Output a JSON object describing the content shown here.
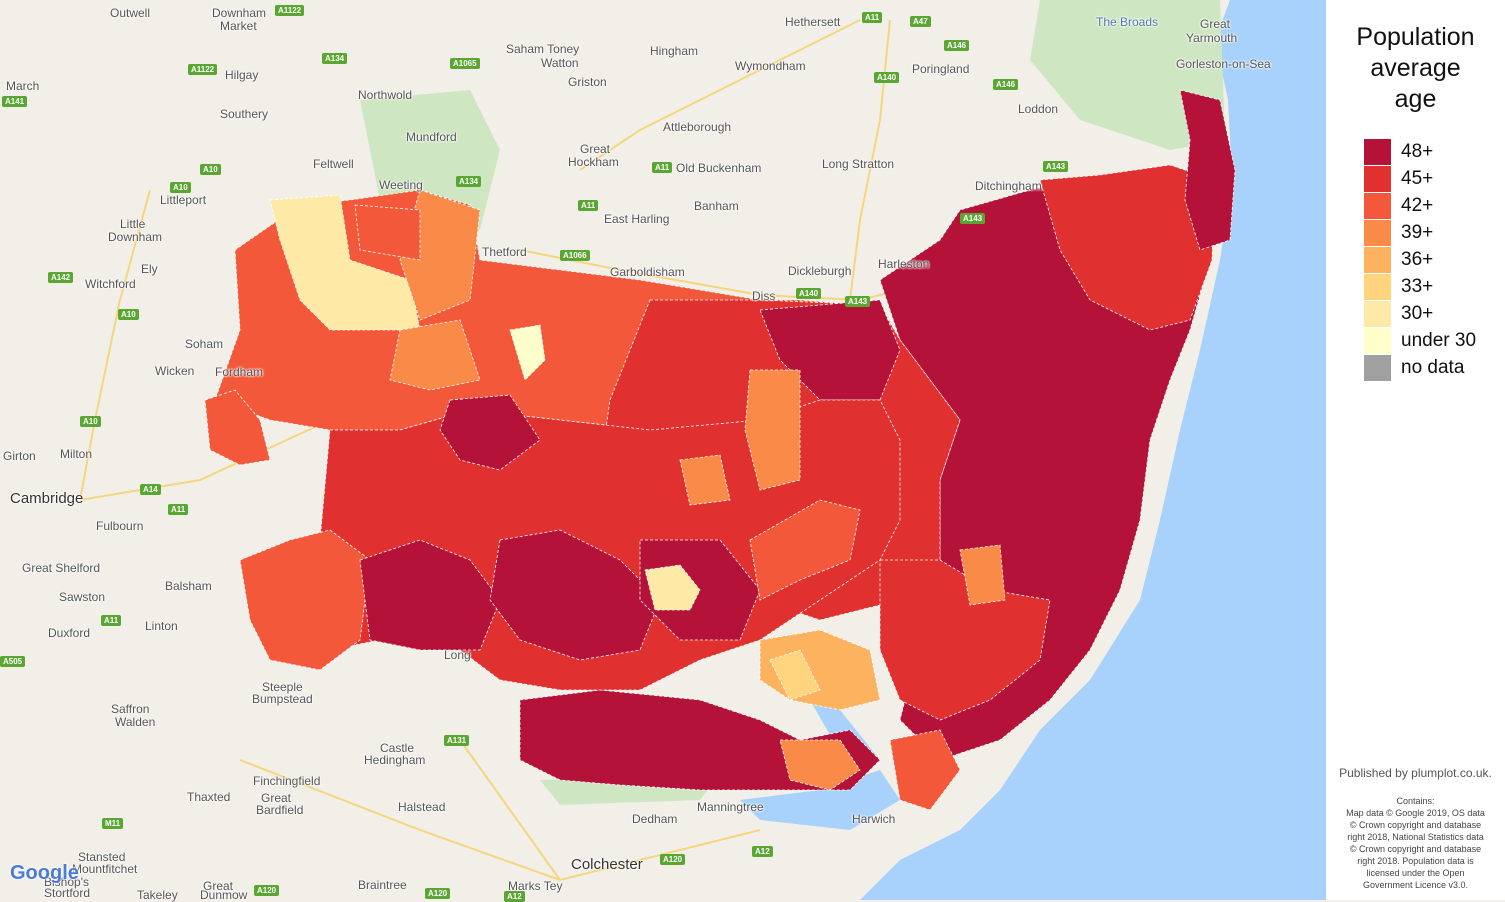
{
  "legend": {
    "title_lines": [
      "Population",
      "average",
      "age"
    ],
    "items": [
      {
        "label": "48+",
        "color": "#b5123a"
      },
      {
        "label": "45+",
        "color": "#e0302f"
      },
      {
        "label": "42+",
        "color": "#f4583a"
      },
      {
        "label": "39+",
        "color": "#fa8a48"
      },
      {
        "label": "36+",
        "color": "#fdb25f"
      },
      {
        "label": "33+",
        "color": "#fed47e"
      },
      {
        "label": "30+",
        "color": "#fee9a6"
      },
      {
        "label": "under 30",
        "color": "#ffffcc"
      },
      {
        "label": "no data",
        "color": "#a0a0a0"
      }
    ]
  },
  "publisher": "Published by plumplot.co.uk.",
  "attribution_lines": [
    "Contains:",
    "Map data © Google 2019, OS data",
    "© Crown copyright and database",
    "right 2018, National Statistics data",
    "© Crown copyright and database",
    "right 2018. Population data is",
    "licensed under the Open",
    "Government Licence v3.0."
  ],
  "google_logo": "Google",
  "places": [
    {
      "name": "Outwell"
    },
    {
      "name": "Downham"
    },
    {
      "name": "Market"
    },
    {
      "name": "March"
    },
    {
      "name": "Hilgay"
    },
    {
      "name": "Southery"
    },
    {
      "name": "Northwold"
    },
    {
      "name": "Mundford"
    },
    {
      "name": "Feltwell"
    },
    {
      "name": "Weeting"
    },
    {
      "name": "Littleport"
    },
    {
      "name": "Little"
    },
    {
      "name": "Downham"
    },
    {
      "name": "Ely"
    },
    {
      "name": "Witchford"
    },
    {
      "name": "Soham"
    },
    {
      "name": "Wicken"
    },
    {
      "name": "Fordham"
    },
    {
      "name": "Milton"
    },
    {
      "name": "Girton"
    },
    {
      "name": "Cambridge"
    },
    {
      "name": "Fulbourn"
    },
    {
      "name": "Great Shelford"
    },
    {
      "name": "Balsham"
    },
    {
      "name": "Sawston"
    },
    {
      "name": "Duxford"
    },
    {
      "name": "Linton"
    },
    {
      "name": "Saffron"
    },
    {
      "name": "Walden"
    },
    {
      "name": "Steeple"
    },
    {
      "name": "Bumpstead"
    },
    {
      "name": "Castle"
    },
    {
      "name": "Hedingham"
    },
    {
      "name": "Finchingfield"
    },
    {
      "name": "Thaxted"
    },
    {
      "name": "Great"
    },
    {
      "name": "Bardfield"
    },
    {
      "name": "Halstead"
    },
    {
      "name": "Stansted"
    },
    {
      "name": "Mountfitchet"
    },
    {
      "name": "Bishop's"
    },
    {
      "name": "Stortford"
    },
    {
      "name": "Takeley"
    },
    {
      "name": "Great"
    },
    {
      "name": "Dunmow"
    },
    {
      "name": "Braintree"
    },
    {
      "name": "Marks Tey"
    },
    {
      "name": "Colchester"
    },
    {
      "name": "Manningtree"
    },
    {
      "name": "Harwich"
    },
    {
      "name": "Dedham"
    },
    {
      "name": "Saham Toney"
    },
    {
      "name": "Watton"
    },
    {
      "name": "Griston"
    },
    {
      "name": "Hingham"
    },
    {
      "name": "Great"
    },
    {
      "name": "Hockham"
    },
    {
      "name": "Attleborough"
    },
    {
      "name": "Old Buckenham"
    },
    {
      "name": "East Harling"
    },
    {
      "name": "Banham"
    },
    {
      "name": "Thetford"
    },
    {
      "name": "Garboldisham"
    },
    {
      "name": "Hethersett"
    },
    {
      "name": "Wymondham"
    },
    {
      "name": "Poringland"
    },
    {
      "name": "Long Stratton"
    },
    {
      "name": "Dickleburgh"
    },
    {
      "name": "Harleston"
    },
    {
      "name": "Diss"
    },
    {
      "name": "Loddon"
    },
    {
      "name": "The Broads"
    },
    {
      "name": "Great"
    },
    {
      "name": "Yarmouth"
    },
    {
      "name": "Gorleston-on-Sea"
    },
    {
      "name": "Long"
    },
    {
      "name": "Ditchingham"
    }
  ],
  "roads": [
    "A1122",
    "A1122",
    "A134",
    "A1065",
    "A141",
    "A10",
    "A10",
    "A142",
    "A10",
    "A134",
    "A11",
    "A11",
    "A1066",
    "A11",
    "A47",
    "A146",
    "A140",
    "A146",
    "A143",
    "A143",
    "A140",
    "A143",
    "A10",
    "A14",
    "A11",
    "A11",
    "A505",
    "A131",
    "M11",
    "A120",
    "A120",
    "A120",
    "A12",
    "A12"
  ]
}
